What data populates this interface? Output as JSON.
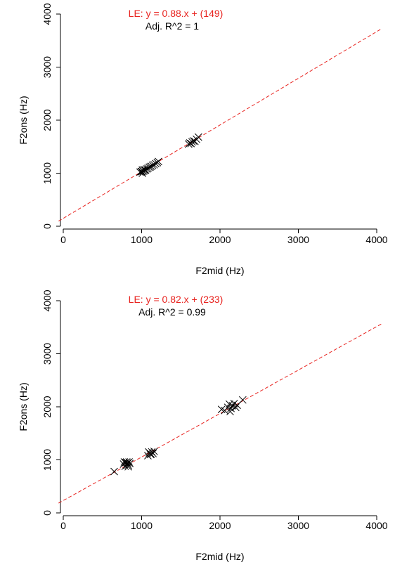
{
  "colors": {
    "fit": "#e8231f",
    "text": "#000000"
  },
  "chart_data": [
    {
      "type": "scatter",
      "xlabel": "F2mid (Hz)",
      "ylabel": "F2ons (Hz)",
      "xlim": [
        0,
        4000
      ],
      "ylim": [
        0,
        4000
      ],
      "xticks": [
        "0",
        "1000",
        "2000",
        "3000",
        "4000"
      ],
      "yticks": [
        "0",
        "1000",
        "2000",
        "3000",
        "4000"
      ],
      "fit": {
        "slope": 0.88,
        "intercept": 149
      },
      "equation": "LE: y = 0.88.x + (149)",
      "r2": "Adj. R^2 = 1",
      "x": [
        980,
        995,
        1005,
        1010,
        1015,
        1025,
        1040,
        1050,
        1065,
        1080,
        1095,
        1110,
        1125,
        1140,
        1160,
        1180,
        1200,
        1215,
        1010,
        1030,
        1600,
        1615,
        1630,
        1645,
        1660,
        1680,
        1700,
        1725
      ],
      "y": [
        1020,
        1035,
        1030,
        1000,
        1050,
        1040,
        1055,
        1060,
        1080,
        1090,
        1110,
        1120,
        1130,
        1150,
        1160,
        1180,
        1200,
        1220,
        1060,
        1070,
        1550,
        1570,
        1560,
        1590,
        1610,
        1600,
        1640,
        1680
      ]
    },
    {
      "type": "scatter",
      "xlabel": "F2mid (Hz)",
      "ylabel": "F2ons (Hz)",
      "xlim": [
        0,
        4000
      ],
      "ylim": [
        0,
        4000
      ],
      "xticks": [
        "0",
        "1000",
        "2000",
        "3000",
        "4000"
      ],
      "yticks": [
        "0",
        "1000",
        "2000",
        "3000",
        "4000"
      ],
      "fit": {
        "slope": 0.82,
        "intercept": 233
      },
      "equation": "LE: y = 0.82.x + (233)",
      "r2": "Adj. R^2 = 0.99",
      "x": [
        650,
        770,
        790,
        800,
        810,
        820,
        830,
        840,
        850,
        780,
        810,
        830,
        1080,
        1100,
        1115,
        1130,
        1145,
        1160,
        1090,
        1120,
        2020,
        2060,
        2100,
        2120,
        2140,
        2160,
        2180,
        2200,
        2220,
        2290,
        2130
      ],
      "y": [
        780,
        920,
        880,
        950,
        900,
        940,
        870,
        960,
        930,
        960,
        960,
        900,
        1080,
        1130,
        1100,
        1150,
        1120,
        1160,
        1150,
        1110,
        1950,
        1930,
        1990,
        2050,
        1970,
        2020,
        2060,
        1990,
        2030,
        2130,
        1910
      ]
    }
  ]
}
